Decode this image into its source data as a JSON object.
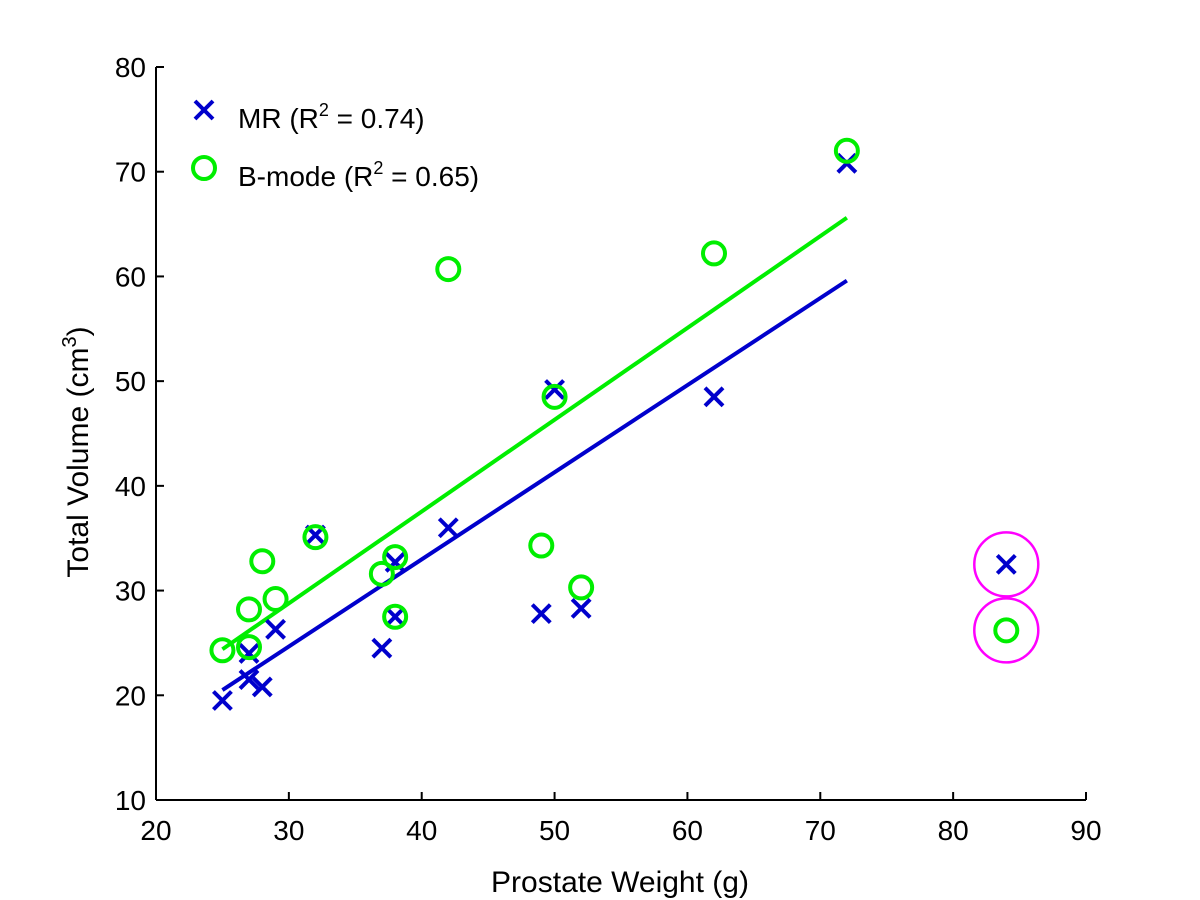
{
  "chart_data": {
    "type": "scatter",
    "xlabel": "Prostate Weight (g)",
    "ylabel_main": "Total Volume (cm",
    "ylabel_sup": "3",
    "ylabel_end": ")",
    "xlim": [
      20,
      90
    ],
    "ylim": [
      10,
      80
    ],
    "xticks": [
      20,
      30,
      40,
      50,
      60,
      70,
      80,
      90
    ],
    "yticks": [
      10,
      20,
      30,
      40,
      50,
      60,
      70,
      80
    ],
    "grid": false,
    "legend_position": "top-left",
    "series": [
      {
        "name": "MR",
        "r2_label": "R",
        "r2_sup": "2",
        "r2_value": " = 0.74)",
        "marker": "x",
        "color": "#0000cc",
        "x": [
          25,
          27,
          27,
          28,
          29,
          32,
          37,
          38,
          38,
          42,
          49,
          50,
          52,
          62,
          72,
          84
        ],
        "y": [
          19.5,
          24,
          21.5,
          20.8,
          26.3,
          35.3,
          24.5,
          32.7,
          27.5,
          36,
          27.8,
          49.2,
          28.3,
          48.5,
          70.8,
          32.5
        ],
        "fit": {
          "x": [
            25,
            72
          ],
          "y": [
            20.5,
            59.6
          ]
        }
      },
      {
        "name": "B-mode",
        "r2_label": "R",
        "r2_sup": "2",
        "r2_value": " = 0.65)",
        "marker": "o",
        "color": "#00ee00",
        "x": [
          25,
          27,
          27,
          28,
          29,
          32,
          37,
          38,
          38,
          42,
          49,
          50,
          52,
          62,
          72,
          84
        ],
        "y": [
          24.3,
          24.6,
          28.2,
          32.8,
          29.2,
          35.1,
          31.6,
          33.2,
          27.5,
          60.7,
          34.3,
          48.5,
          30.3,
          62.2,
          72,
          26.2
        ],
        "fit": {
          "x": [
            25,
            72
          ],
          "y": [
            24.4,
            65.6
          ]
        }
      }
    ],
    "highlight": {
      "color": "#ff00ff",
      "points": [
        {
          "x": 84,
          "y": 32.5
        },
        {
          "x": 84,
          "y": 26.2
        }
      ]
    }
  }
}
